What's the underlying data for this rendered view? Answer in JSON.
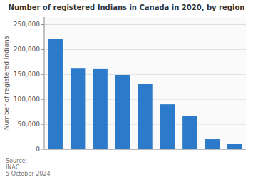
{
  "chart_data": {
    "type": "bar",
    "title": "Number of registered Indians in Canada in 2020, by region",
    "ylabel": "Number of registered Indians",
    "categories": [
      null,
      null,
      null,
      null,
      null,
      null,
      null,
      null,
      null
    ],
    "values": [
      221000,
      163000,
      162000,
      149000,
      131000,
      90000,
      66000,
      20000,
      11000
    ],
    "color": "#2b7bca",
    "ylim": [
      0,
      265000
    ],
    "yticks": [
      0,
      {
        "value": 50000,
        "label": "50,000"
      },
      {
        "value": 100000,
        "label": "100,000"
      },
      {
        "value": 150000,
        "label": "150,000"
      },
      {
        "value": 200000,
        "label": "200,000"
      },
      {
        "value": 250000,
        "label": "250,000"
      }
    ],
    "grid": true,
    "tick_labels": "y",
    "annotation": "Source:\nINAC\n5 October 2024"
  }
}
